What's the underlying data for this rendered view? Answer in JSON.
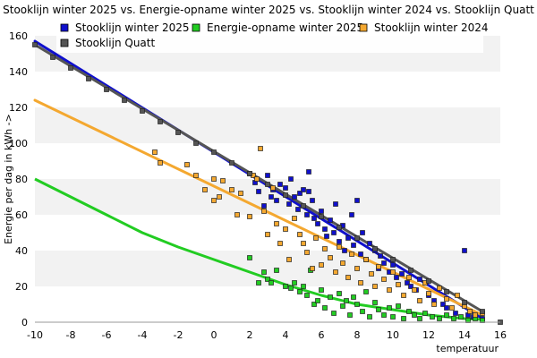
{
  "chart_data": {
    "type": "scatter",
    "title": "Stooklijn winter 2025 vs. Energie-opname winter 2025 vs. Stooklijn winter 2024 vs. Stooklijn Quatt",
    "xlabel": "temperatuur",
    "ylabel": "Energie per dag in kWh ->",
    "xlim": [
      -10,
      16
    ],
    "ylim": [
      0,
      160
    ],
    "x_ticks": [
      "-10",
      "-8",
      "-6",
      "-4",
      "-2",
      "0",
      "2",
      "4",
      "6",
      "8",
      "10",
      "12",
      "14",
      "16"
    ],
    "y_ticks": [
      "0",
      "20",
      "40",
      "60",
      "80",
      "100",
      "120",
      "140",
      "160"
    ],
    "grid": "horizontal bands",
    "legend_position": "top",
    "series": [
      {
        "name": "Stooklijn winter 2025",
        "color": "#1010cc",
        "line": [
          [
            -10,
            157
          ],
          [
            15,
            2
          ]
        ],
        "points": [
          [
            2,
            83
          ],
          [
            2.3,
            78
          ],
          [
            2.5,
            73
          ],
          [
            2.8,
            65
          ],
          [
            3,
            82
          ],
          [
            3.2,
            70
          ],
          [
            3.3,
            74
          ],
          [
            3.5,
            68
          ],
          [
            3.7,
            77
          ],
          [
            4,
            75
          ],
          [
            4.2,
            66
          ],
          [
            4.3,
            80
          ],
          [
            4.5,
            70
          ],
          [
            4.7,
            63
          ],
          [
            4.8,
            72
          ],
          [
            5,
            74
          ],
          [
            5.2,
            60
          ],
          [
            5.3,
            73
          ],
          [
            5.3,
            84
          ],
          [
            5.5,
            68
          ],
          [
            5.6,
            58
          ],
          [
            5.8,
            55
          ],
          [
            6,
            62
          ],
          [
            6.2,
            52
          ],
          [
            6.3,
            48
          ],
          [
            6.5,
            57
          ],
          [
            6.7,
            50
          ],
          [
            6.8,
            66
          ],
          [
            7,
            45
          ],
          [
            7.2,
            54
          ],
          [
            7.3,
            40
          ],
          [
            7.5,
            47
          ],
          [
            7.7,
            60
          ],
          [
            7.8,
            43
          ],
          [
            8,
            68
          ],
          [
            8.2,
            38
          ],
          [
            8.3,
            50
          ],
          [
            8.5,
            35
          ],
          [
            8.7,
            44
          ],
          [
            9,
            40
          ],
          [
            9.2,
            30
          ],
          [
            9.3,
            37
          ],
          [
            9.5,
            33
          ],
          [
            9.8,
            28
          ],
          [
            10,
            32
          ],
          [
            10.2,
            25
          ],
          [
            10.5,
            27
          ],
          [
            10.8,
            22
          ],
          [
            11,
            20
          ],
          [
            11.3,
            18
          ],
          [
            11.5,
            24
          ],
          [
            12,
            15
          ],
          [
            12.3,
            12
          ],
          [
            12.8,
            10
          ],
          [
            13,
            8
          ],
          [
            13.5,
            5
          ],
          [
            14,
            40
          ],
          [
            14.2,
            4
          ],
          [
            14.5,
            3
          ],
          [
            15,
            2
          ]
        ]
      },
      {
        "name": "Energie-opname winter 2025",
        "color": "#22cc22",
        "curve": [
          [
            -10,
            80
          ],
          [
            -8,
            70
          ],
          [
            -6,
            60
          ],
          [
            -4,
            50
          ],
          [
            -2,
            42
          ],
          [
            0,
            35
          ],
          [
            2,
            28
          ],
          [
            4,
            21
          ],
          [
            6,
            15
          ],
          [
            8,
            10
          ],
          [
            10,
            7
          ],
          [
            12,
            4
          ],
          [
            14,
            2
          ],
          [
            15,
            1.5
          ]
        ],
        "points": [
          [
            2,
            36
          ],
          [
            2.5,
            22
          ],
          [
            2.8,
            28
          ],
          [
            3,
            24
          ],
          [
            3.2,
            22
          ],
          [
            3.5,
            29
          ],
          [
            4,
            20
          ],
          [
            4.3,
            19
          ],
          [
            4.5,
            22
          ],
          [
            4.8,
            17
          ],
          [
            5,
            20
          ],
          [
            5.2,
            15
          ],
          [
            5.4,
            29
          ],
          [
            5.6,
            10
          ],
          [
            5.8,
            12
          ],
          [
            6,
            18
          ],
          [
            6.2,
            8
          ],
          [
            6.5,
            14
          ],
          [
            6.7,
            5
          ],
          [
            7,
            16
          ],
          [
            7.2,
            9
          ],
          [
            7.4,
            12
          ],
          [
            7.6,
            4
          ],
          [
            7.8,
            14
          ],
          [
            8,
            10
          ],
          [
            8.3,
            6
          ],
          [
            8.5,
            17
          ],
          [
            8.7,
            3
          ],
          [
            9,
            11
          ],
          [
            9.2,
            7
          ],
          [
            9.5,
            4
          ],
          [
            9.8,
            8
          ],
          [
            10,
            3
          ],
          [
            10.3,
            9
          ],
          [
            10.6,
            2
          ],
          [
            10.9,
            6
          ],
          [
            11.2,
            4
          ],
          [
            11.5,
            2
          ],
          [
            11.8,
            5
          ],
          [
            12.2,
            3
          ],
          [
            12.6,
            2
          ],
          [
            13,
            4
          ],
          [
            13.4,
            2
          ],
          [
            13.8,
            3
          ],
          [
            14.2,
            1
          ],
          [
            14.6,
            2
          ],
          [
            15,
            1
          ]
        ]
      },
      {
        "name": "Stooklijn winter 2024",
        "color": "#f4a830",
        "line": [
          [
            -10,
            124
          ],
          [
            15,
            4
          ]
        ],
        "points": [
          [
            -3.3,
            95
          ],
          [
            -3,
            89
          ],
          [
            -1.5,
            88
          ],
          [
            -1,
            82
          ],
          [
            -0.5,
            74
          ],
          [
            0,
            80
          ],
          [
            0,
            68
          ],
          [
            0.3,
            70
          ],
          [
            0.5,
            79
          ],
          [
            1,
            74
          ],
          [
            1.3,
            60
          ],
          [
            1.5,
            72
          ],
          [
            2,
            59
          ],
          [
            2.2,
            82
          ],
          [
            2.4,
            80
          ],
          [
            2.6,
            97
          ],
          [
            2.8,
            62
          ],
          [
            3,
            49
          ],
          [
            3.3,
            75
          ],
          [
            3.5,
            55
          ],
          [
            3.7,
            44
          ],
          [
            4,
            52
          ],
          [
            4.2,
            35
          ],
          [
            4.5,
            58
          ],
          [
            4.8,
            49
          ],
          [
            5,
            44
          ],
          [
            5.2,
            39
          ],
          [
            5.5,
            30
          ],
          [
            5.7,
            47
          ],
          [
            6,
            32
          ],
          [
            6.2,
            41
          ],
          [
            6.5,
            36
          ],
          [
            6.8,
            28
          ],
          [
            7,
            42
          ],
          [
            7.2,
            33
          ],
          [
            7.5,
            25
          ],
          [
            7.7,
            38
          ],
          [
            8,
            30
          ],
          [
            8.2,
            22
          ],
          [
            8.5,
            35
          ],
          [
            8.8,
            27
          ],
          [
            9,
            20
          ],
          [
            9.2,
            31
          ],
          [
            9.5,
            24
          ],
          [
            9.8,
            18
          ],
          [
            10,
            28
          ],
          [
            10.3,
            21
          ],
          [
            10.6,
            15
          ],
          [
            10.9,
            25
          ],
          [
            11.2,
            18
          ],
          [
            11.5,
            12
          ],
          [
            11.8,
            22
          ],
          [
            12,
            16
          ],
          [
            12.3,
            10
          ],
          [
            12.6,
            19
          ],
          [
            13,
            13
          ],
          [
            13.3,
            8
          ],
          [
            13.6,
            15
          ],
          [
            14,
            9
          ],
          [
            14.3,
            6
          ],
          [
            14.6,
            4
          ],
          [
            15,
            5
          ]
        ]
      },
      {
        "name": "Stooklijn Quatt",
        "color": "#555555",
        "line": [
          [
            -10,
            155
          ],
          [
            15,
            6
          ]
        ],
        "points": [
          [
            -10,
            155
          ],
          [
            -9,
            148
          ],
          [
            -8,
            142
          ],
          [
            -7,
            136
          ],
          [
            -6,
            130
          ],
          [
            -5,
            124
          ],
          [
            -4,
            118
          ],
          [
            -3,
            112
          ],
          [
            -2,
            106
          ],
          [
            -1,
            100
          ],
          [
            0,
            95
          ],
          [
            1,
            89
          ],
          [
            2,
            83
          ],
          [
            3,
            77
          ],
          [
            4,
            71
          ],
          [
            5,
            65
          ],
          [
            6,
            59
          ],
          [
            7,
            53
          ],
          [
            8,
            47
          ],
          [
            9,
            41
          ],
          [
            10,
            35
          ],
          [
            11,
            29
          ],
          [
            12,
            23
          ],
          [
            13,
            17
          ],
          [
            14,
            11
          ],
          [
            15,
            6
          ],
          [
            16,
            0
          ]
        ]
      }
    ]
  }
}
